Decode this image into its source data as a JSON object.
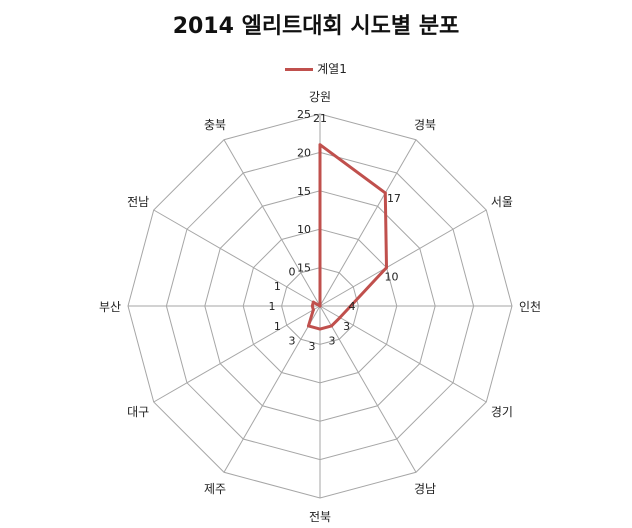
{
  "chart_data": {
    "type": "radar",
    "title": "2014 엘리트대회 시도별 분포",
    "categories": [
      "강원",
      "경북",
      "서울",
      "인천",
      "경기",
      "경남",
      "전북",
      "제주",
      "대구",
      "부산",
      "전남",
      "충북"
    ],
    "series": [
      {
        "name": "계열1",
        "values": [
          21,
          17,
          10,
          4,
          3,
          3,
          3,
          3,
          1,
          1,
          1,
          0
        ],
        "labels": [
          "21",
          "17",
          "10",
          "4",
          "3",
          "3",
          "3",
          "3",
          "1",
          "1",
          "1",
          "0"
        ]
      }
    ],
    "axis_ticks": [
      "15",
      "10",
      "15",
      "20",
      "25"
    ],
    "ylim": [
      0,
      25
    ],
    "legend_position": "top",
    "grid": true,
    "colors": {
      "series": "#c0504d",
      "grid": "#a6a6a6"
    }
  }
}
